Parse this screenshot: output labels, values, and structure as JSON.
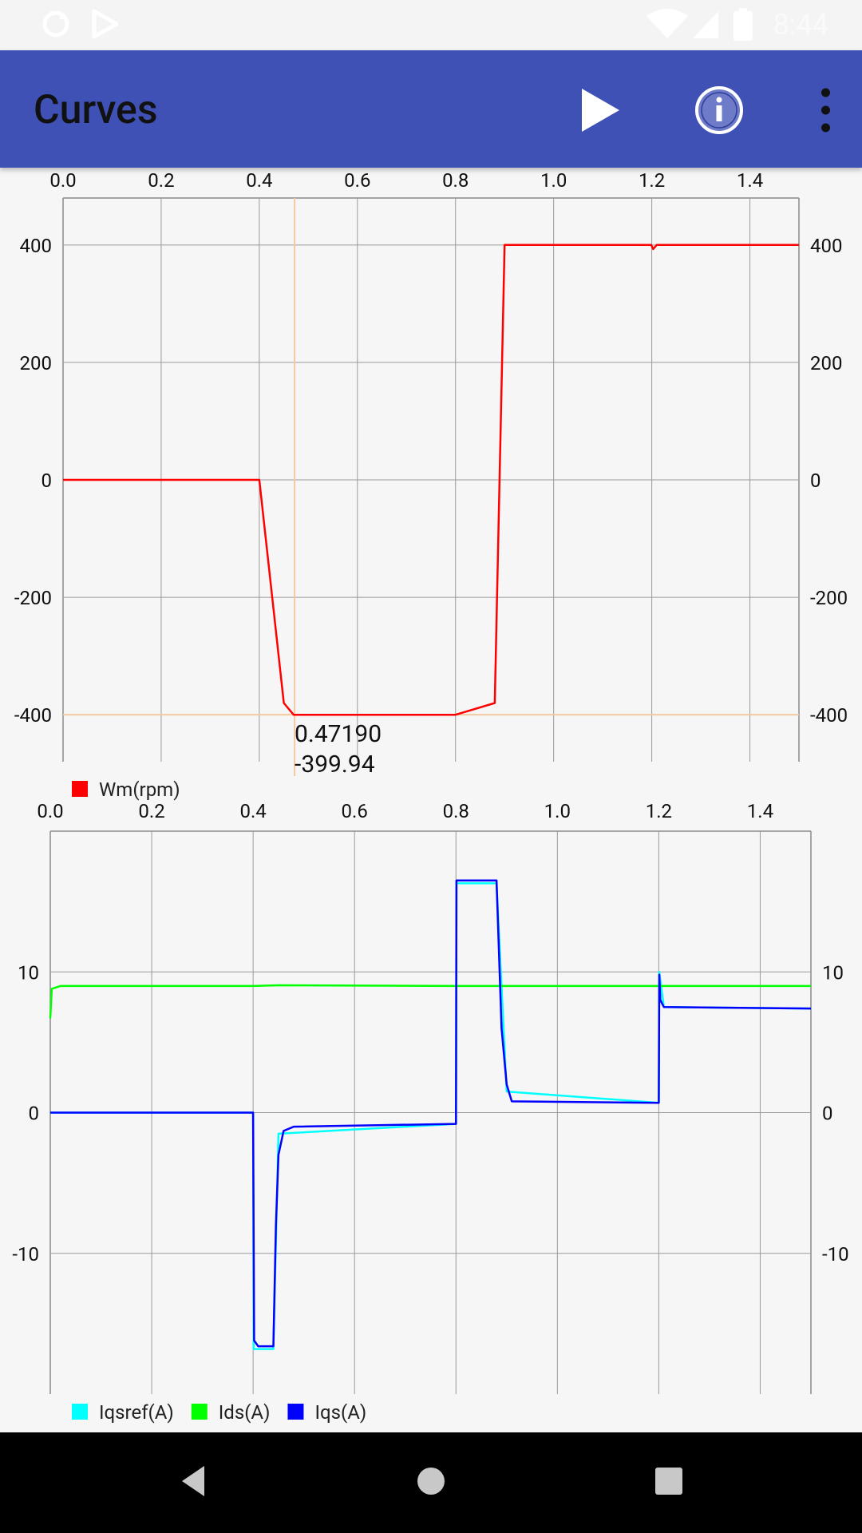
{
  "status_bar": {
    "time": "8:44",
    "icons": [
      "sync-icon",
      "play-store-icon",
      "wifi-icon",
      "signal-icon",
      "battery-icon"
    ]
  },
  "app_bar": {
    "title": "Curves",
    "actions": [
      "play-icon",
      "info-icon",
      "overflow-menu-icon"
    ]
  },
  "colors": {
    "app_bar": "#3f51b5",
    "wm": "#ff0000",
    "iqsref": "#00ffff",
    "ids": "#00ff00",
    "iqs": "#0000ff",
    "cursor": "#f5c9a0"
  },
  "chart_data": [
    {
      "type": "line",
      "x_ticks": [
        "0.0",
        "0.2",
        "0.4",
        "0.6",
        "0.8",
        "1.0",
        "1.2",
        "1.4"
      ],
      "y_ticks": [
        "400",
        "200",
        "0",
        "-200",
        "-400"
      ],
      "xlim": [
        0,
        1.5
      ],
      "ylim": [
        -480,
        480
      ],
      "grid": true,
      "legend_position": "bottom-left",
      "cursor": {
        "x": 0.4719,
        "y": -399.94,
        "x_label": "0.47190",
        "y_label": "-399.94"
      },
      "series": [
        {
          "name": "Wm(rpm)",
          "color": "#ff0000",
          "points": [
            [
              0,
              0
            ],
            [
              0.4,
              0
            ],
            [
              0.45,
              -380
            ],
            [
              0.47,
              -400
            ],
            [
              0.8,
              -400
            ],
            [
              0.88,
              -380
            ],
            [
              0.9,
              400
            ],
            [
              1.199,
              400
            ],
            [
              1.203,
              393
            ],
            [
              1.21,
              400
            ],
            [
              1.5,
              400
            ]
          ]
        }
      ]
    },
    {
      "type": "line",
      "x_ticks": [
        "0.0",
        "0.2",
        "0.4",
        "0.6",
        "0.8",
        "1.0",
        "1.2",
        "1.4"
      ],
      "y_ticks": [
        "10",
        "0",
        "-10"
      ],
      "xlim": [
        0,
        1.5
      ],
      "ylim": [
        -20,
        20
      ],
      "grid": true,
      "legend_position": "bottom-left",
      "series": [
        {
          "name": "Iqsref(A)",
          "color": "#00ffff",
          "points": [
            [
              0,
              0
            ],
            [
              0.4,
              0
            ],
            [
              0.401,
              -16.8
            ],
            [
              0.44,
              -16.8
            ],
            [
              0.45,
              -1.5
            ],
            [
              0.8,
              -0.8
            ],
            [
              0.801,
              16.3
            ],
            [
              0.88,
              16.3
            ],
            [
              0.9,
              1.5
            ],
            [
              1.2,
              0.7
            ],
            [
              1.201,
              10
            ],
            [
              1.21,
              7.5
            ],
            [
              1.5,
              7.4
            ]
          ]
        },
        {
          "name": "Ids(A)",
          "color": "#00ff00",
          "points": [
            [
              0,
              6.7
            ],
            [
              0.003,
              8.8
            ],
            [
              0.02,
              9.0
            ],
            [
              0.4,
              9.0
            ],
            [
              0.45,
              9.05
            ],
            [
              0.8,
              9.0
            ],
            [
              1.5,
              9.0
            ]
          ]
        },
        {
          "name": "Iqs(A)",
          "color": "#0000ff",
          "points": [
            [
              0,
              0
            ],
            [
              0.4,
              0
            ],
            [
              0.402,
              -16.2
            ],
            [
              0.41,
              -16.6
            ],
            [
              0.44,
              -16.6
            ],
            [
              0.445,
              -8
            ],
            [
              0.45,
              -3
            ],
            [
              0.46,
              -1.3
            ],
            [
              0.48,
              -1.0
            ],
            [
              0.8,
              -0.8
            ],
            [
              0.801,
              16.5
            ],
            [
              0.88,
              16.5
            ],
            [
              0.89,
              6
            ],
            [
              0.9,
              2
            ],
            [
              0.91,
              0.8
            ],
            [
              1.2,
              0.7
            ],
            [
              1.201,
              9.8
            ],
            [
              1.203,
              8.0
            ],
            [
              1.21,
              7.5
            ],
            [
              1.5,
              7.4
            ]
          ]
        }
      ]
    }
  ]
}
